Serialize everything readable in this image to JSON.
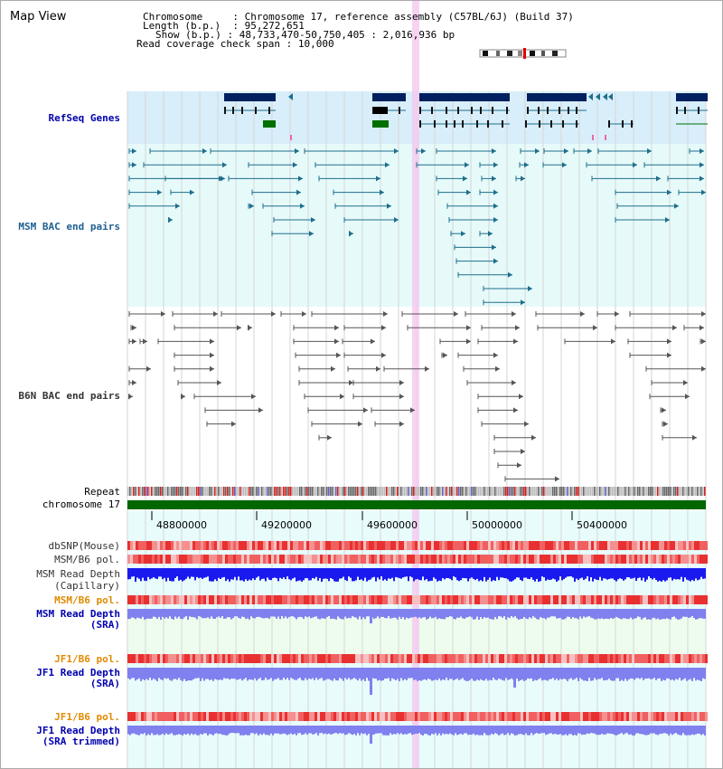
{
  "header": {
    "title": "Map View",
    "chromosome_key": "Chromosome",
    "chromosome_value": "Chromosome 17, reference assembly (C57BL/6J) (Build 37)",
    "length_key": "Length (b.p.)",
    "length_value": "95,272,651",
    "show_key": "Show (b.p.)",
    "show_value": "48,733,470-50,750,405 : 2,016,936 bp",
    "coverage_key": "Read coverage check span",
    "coverage_value": "10,000"
  },
  "tracks": {
    "refseq": "RefSeq Genes",
    "msm_bac": "MSM BAC end pairs",
    "b6n_bac": "B6N BAC end pairs",
    "repeat": "Repeat",
    "chromosome": "chromosome 17",
    "dbsnp": "dbSNP(Mouse)",
    "msm_b6_pol_1": "MSM/B6 pol.",
    "msm_depth_cap_1": "MSM Read Depth",
    "msm_depth_cap_2": "(Capillary)",
    "msm_b6_pol_2": "MSM/B6 pol.",
    "msm_depth_sra_1": "MSM Read Depth",
    "msm_depth_sra_2": "(SRA)",
    "jf1_b6_pol_1": "JF1/B6 pol.",
    "jf1_depth_sra_1": "JF1 Read Depth",
    "jf1_depth_sra_2": "(SRA)",
    "jf1_b6_pol_2": "JF1/B6 pol.",
    "jf1_depth_trim_1": "JF1 Read Depth",
    "jf1_depth_trim_2": "(SRA trimmed)"
  },
  "axis": {
    "ticks": [
      "48800000",
      "49200000",
      "49600000",
      "50000000",
      "50400000"
    ]
  },
  "colors": {
    "refseq_bg": "#d8eefa",
    "bac_bg": "#e6fafa",
    "gene_navy": "#002060",
    "gene_green": "#007000",
    "msm_bac": "#1e6e8c",
    "b6n_bac": "#555555",
    "chromosome": "#006600",
    "snp_red": "#e83030",
    "depth_blue": "#1a1aee",
    "depth_light": "#8080ee",
    "highlight": "#f5c8f0"
  }
}
